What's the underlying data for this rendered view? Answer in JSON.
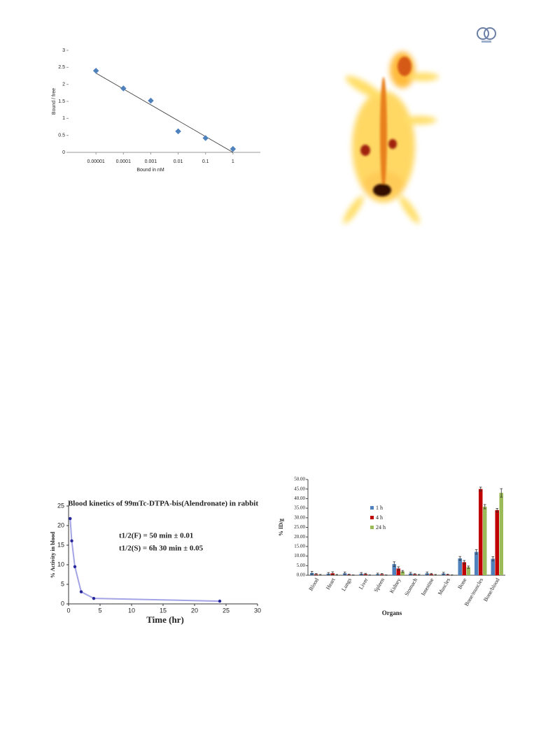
{
  "chart_data": [
    {
      "type": "scatter",
      "xlabel": "Bound in nM",
      "ylabel": "Bound / free",
      "log_x": true,
      "x": [
        1e-05,
        0.0001,
        0.001,
        0.01,
        0.1,
        1
      ],
      "y": [
        2.4,
        1.88,
        1.52,
        0.62,
        0.42,
        0.1
      ],
      "color": "#4f81bd",
      "trendline": {
        "x": [
          1e-05,
          1
        ],
        "y": [
          2.33,
          0
        ]
      },
      "xlim": [
        1e-06,
        10
      ],
      "xticks": [
        1e-05,
        0.0001,
        0.001,
        0.01,
        0.1,
        1
      ],
      "ylim": [
        0,
        3
      ],
      "yticks": [
        0,
        0.5,
        1,
        1.5,
        2,
        2.5,
        3
      ]
    },
    {
      "type": "line",
      "title": "Blood kinetics of 99mTc-DTPA-bis(Alendronate) in rabbit",
      "annotations": [
        "t1/2(F)  =  50 min ± 0.01",
        "t1/2(S)  =  6h 30 min ± 0.05"
      ],
      "xlabel": "Time (hr)",
      "ylabel": "% Activity in blood",
      "x": [
        0.25,
        0.5,
        1,
        2,
        4,
        24
      ],
      "y": [
        21.8,
        16.1,
        9.5,
        3.1,
        1.4,
        0.7
      ],
      "color": "#a3a3e6",
      "marker_color": "#26269a",
      "xlim": [
        0,
        30
      ],
      "xticks": [
        0,
        5,
        10,
        15,
        20,
        25,
        30
      ],
      "ylim": [
        0,
        25
      ],
      "yticks": [
        0,
        5,
        10,
        15,
        20,
        25
      ]
    },
    {
      "type": "bar",
      "xlabel": "Organs",
      "ylabel": "% ID/g",
      "categories": [
        "Blood",
        "Heart",
        "Lungs",
        "Liver",
        "Spleen",
        "Kidney",
        "Stomach",
        "Intestine",
        "Muscles",
        "Bone",
        "Bone/muscles",
        "Bone/blood"
      ],
      "series": [
        {
          "name": "1 h",
          "color": "#4f81bd",
          "values": [
            1.2,
            0.8,
            1.0,
            0.8,
            0.6,
            5.8,
            0.9,
            1.0,
            0.9,
            8.8,
            12.2,
            8.6
          ],
          "errors": [
            0.8,
            0.6,
            0.7,
            0.6,
            0.5,
            1.2,
            0.6,
            0.7,
            0.6,
            1.0,
            1.2,
            1.1
          ]
        },
        {
          "name": "4 h",
          "color": "#c00000",
          "values": [
            0.5,
            1.0,
            0.3,
            0.6,
            0.5,
            3.5,
            0.5,
            0.6,
            0.3,
            6.8,
            45.0,
            34.0
          ],
          "errors": [
            0.4,
            0.8,
            0.3,
            0.4,
            0.4,
            0.9,
            0.3,
            0.4,
            0.3,
            0.9,
            1.0,
            0.9
          ]
        },
        {
          "name": "24 h",
          "color": "#9bbb59",
          "values": [
            0.2,
            0.2,
            0.1,
            0.1,
            0.1,
            2.0,
            0.2,
            0.2,
            0.1,
            4.2,
            35.8,
            43.0
          ],
          "errors": [
            0.2,
            0.2,
            0.1,
            0.1,
            0.1,
            0.5,
            0.2,
            0.2,
            0.1,
            0.6,
            1.1,
            2.2
          ]
        }
      ],
      "ylim": [
        0,
        50
      ],
      "yticks": [
        {
          "value": 0,
          "label": "0.00"
        },
        {
          "value": 5,
          "label": "5.00"
        },
        {
          "value": 10,
          "label": "10.00"
        },
        {
          "value": 15,
          "label": "15.00"
        },
        {
          "value": 20,
          "label": "20.00"
        },
        {
          "value": 25,
          "label": "25.00"
        },
        {
          "value": 30,
          "label": "30.00"
        },
        {
          "value": 35,
          "label": "35.00"
        },
        {
          "value": 40,
          "label": "40.00"
        },
        {
          "value": 45,
          "label": "45.00"
        },
        {
          "value": 50,
          "label": "50.00"
        }
      ]
    }
  ]
}
